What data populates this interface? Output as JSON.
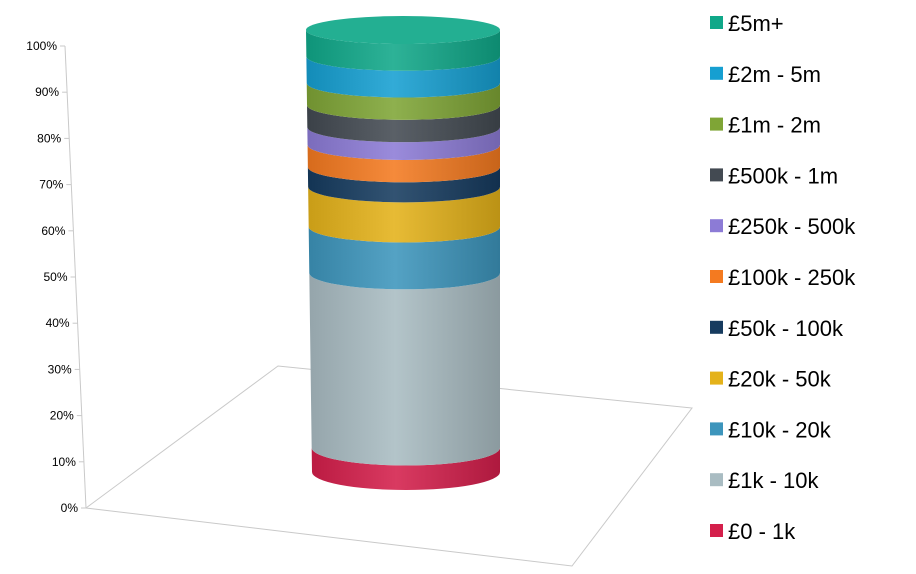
{
  "chart_data": {
    "type": "bar",
    "subtype": "stacked-100-cylinder-3d",
    "title": "",
    "xlabel": "",
    "ylabel": "",
    "ylim": [
      0,
      100
    ],
    "y_ticks": [
      "0%",
      "10%",
      "20%",
      "30%",
      "40%",
      "50%",
      "60%",
      "70%",
      "80%",
      "90%",
      "100%"
    ],
    "grid": false,
    "legend_position": "right",
    "series": [
      {
        "name": "£0 - 1k",
        "value": 5.5,
        "color": "#d41f4b"
      },
      {
        "name": "£1k - 10k",
        "value": 39.5,
        "color": "#a9bcc2"
      },
      {
        "name": "£10k - 20k",
        "value": 10.5,
        "color": "#3d95bc"
      },
      {
        "name": "£20k - 50k",
        "value": 9.0,
        "color": "#e4b21a"
      },
      {
        "name": "£50k - 100k",
        "value": 4.5,
        "color": "#163b5f"
      },
      {
        "name": "£100k - 250k",
        "value": 5.0,
        "color": "#f47a20"
      },
      {
        "name": "£250k - 500k",
        "value": 4.0,
        "color": "#8c7bd6"
      },
      {
        "name": "£500k - 1m",
        "value": 5.0,
        "color": "#434a52"
      },
      {
        "name": "£1m - 2m",
        "value": 5.0,
        "color": "#7fa536"
      },
      {
        "name": "£2m - 5m",
        "value": 6.0,
        "color": "#169fd1"
      },
      {
        "name": "£5m+",
        "value": 6.0,
        "color": "#10a889"
      }
    ]
  }
}
